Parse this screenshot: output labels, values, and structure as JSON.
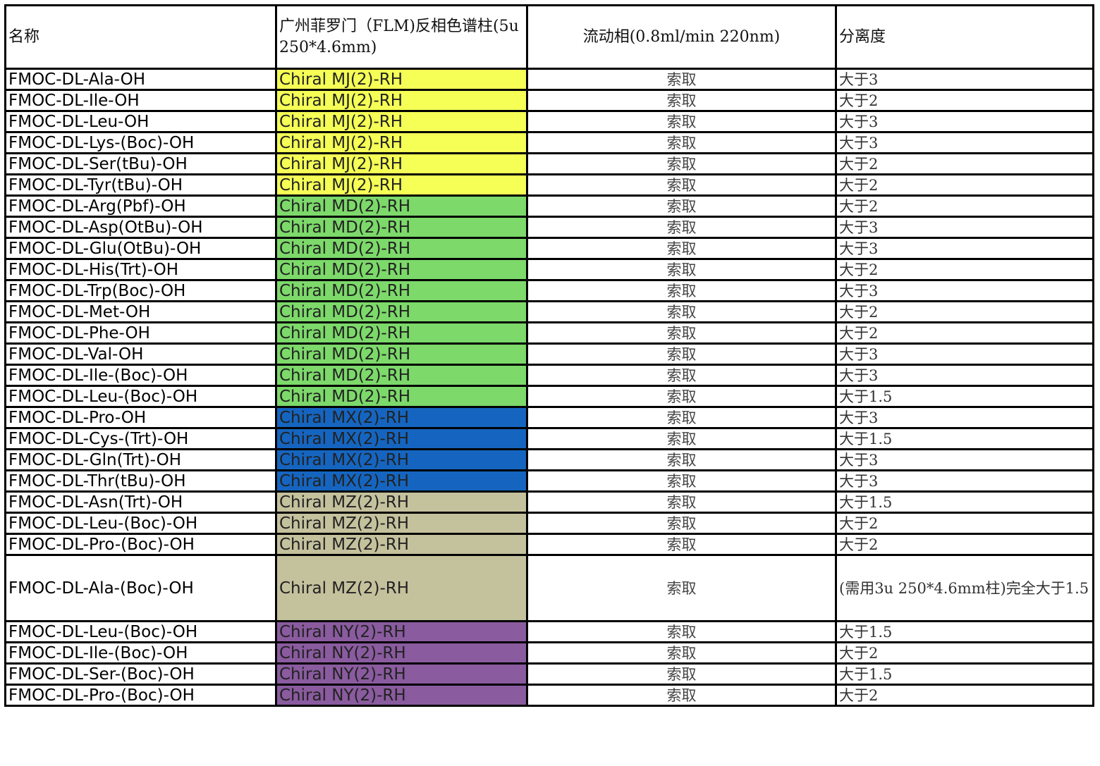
{
  "colors": {
    "MJ": "#f5ff55",
    "MD": "#7cd96a",
    "MX": "#1565c0",
    "MZ": "#c4c19d",
    "NY": "#8a5b9f"
  },
  "headers": [
    "名称",
    "广州菲罗门（FLM)反相色谱柱(5u 250*4.6mm)",
    "流动相(0.8ml/min 220nm)",
    "分离度"
  ],
  "rows": [
    {
      "name": "FMOC-DL-Ala-OH",
      "column": "Chiral MJ(2)-RH",
      "group": "MJ",
      "mobile": "索取",
      "resolution": "大于3"
    },
    {
      "name": "FMOC-DL-Ile-OH",
      "column": "Chiral MJ(2)-RH",
      "group": "MJ",
      "mobile": "索取",
      "resolution": "大于2"
    },
    {
      "name": "FMOC-DL-Leu-OH",
      "column": "Chiral MJ(2)-RH",
      "group": "MJ",
      "mobile": "索取",
      "resolution": "大于3"
    },
    {
      "name": "FMOC-DL-Lys-(Boc)-OH",
      "column": "Chiral MJ(2)-RH",
      "group": "MJ",
      "mobile": "索取",
      "resolution": "大于3"
    },
    {
      "name": "FMOC-DL-Ser(tBu)-OH",
      "column": "Chiral MJ(2)-RH",
      "group": "MJ",
      "mobile": "索取",
      "resolution": "大于2"
    },
    {
      "name": "FMOC-DL-Tyr(tBu)-OH",
      "column": "Chiral MJ(2)-RH",
      "group": "MJ",
      "mobile": "索取",
      "resolution": "大于2"
    },
    {
      "name": "FMOC-DL-Arg(Pbf)-OH",
      "column": "Chiral MD(2)-RH",
      "group": "MD",
      "mobile": "索取",
      "resolution": "大于2"
    },
    {
      "name": "FMOC-DL-Asp(OtBu)-OH",
      "column": "Chiral MD(2)-RH",
      "group": "MD",
      "mobile": "索取",
      "resolution": "大于3"
    },
    {
      "name": "FMOC-DL-Glu(OtBu)-OH",
      "column": "Chiral MD(2)-RH",
      "group": "MD",
      "mobile": "索取",
      "resolution": "大于3"
    },
    {
      "name": "FMOC-DL-His(Trt)-OH",
      "column": "Chiral MD(2)-RH",
      "group": "MD",
      "mobile": "索取",
      "resolution": "大于2"
    },
    {
      "name": "FMOC-DL-Trp(Boc)-OH",
      "column": "Chiral MD(2)-RH",
      "group": "MD",
      "mobile": "索取",
      "resolution": "大于3"
    },
    {
      "name": "FMOC-DL-Met-OH",
      "column": "Chiral MD(2)-RH",
      "group": "MD",
      "mobile": "索取",
      "resolution": "大于2"
    },
    {
      "name": "FMOC-DL-Phe-OH",
      "column": "Chiral MD(2)-RH",
      "group": "MD",
      "mobile": "索取",
      "resolution": "大于2"
    },
    {
      "name": "FMOC-DL-Val-OH",
      "column": "Chiral MD(2)-RH",
      "group": "MD",
      "mobile": "索取",
      "resolution": "大于3"
    },
    {
      "name": "FMOC-DL-Ile-(Boc)-OH",
      "column": "Chiral MD(2)-RH",
      "group": "MD",
      "mobile": "索取",
      "resolution": "大于3"
    },
    {
      "name": "FMOC-DL-Leu-(Boc)-OH",
      "column": "Chiral MD(2)-RH",
      "group": "MD",
      "mobile": "索取",
      "resolution": "大于1.5"
    },
    {
      "name": "FMOC-DL-Pro-OH",
      "column": "Chiral MX(2)-RH",
      "group": "MX",
      "mobile": "索取",
      "resolution": "大于3"
    },
    {
      "name": "FMOC-DL-Cys-(Trt)-OH",
      "column": "Chiral MX(2)-RH",
      "group": "MX",
      "mobile": "索取",
      "resolution": "大于1.5"
    },
    {
      "name": "FMOC-DL-Gln(Trt)-OH",
      "column": "Chiral MX(2)-RH",
      "group": "MX",
      "mobile": "索取",
      "resolution": "大于3"
    },
    {
      "name": "FMOC-DL-Thr(tBu)-OH",
      "column": "Chiral MX(2)-RH",
      "group": "MX",
      "mobile": "索取",
      "resolution": "大于3"
    },
    {
      "name": "FMOC-DL-Asn(Trt)-OH",
      "column": "Chiral MZ(2)-RH",
      "group": "MZ",
      "mobile": "索取",
      "resolution": "大于1.5"
    },
    {
      "name": "FMOC-DL-Leu-(Boc)-OH",
      "column": "Chiral MZ(2)-RH",
      "group": "MZ",
      "mobile": "索取",
      "resolution": "大于2"
    },
    {
      "name": "FMOC-DL-Pro-(Boc)-OH",
      "column": "Chiral MZ(2)-RH",
      "group": "MZ",
      "mobile": "索取",
      "resolution": "大于2"
    },
    {
      "name": "FMOC-DL-Ala-(Boc)-OH",
      "column": "Chiral MZ(2)-RH",
      "group": "MZ",
      "mobile": "索取",
      "resolution": "(需用3u 250*4.6mm柱)完全大于1.5",
      "tall": true
    },
    {
      "name": "FMOC-DL-Leu-(Boc)-OH",
      "column": "Chiral NY(2)-RH",
      "group": "NY",
      "mobile": "索取",
      "resolution": "大于1.5"
    },
    {
      "name": "FMOC-DL-Ile-(Boc)-OH",
      "column": "Chiral NY(2)-RH",
      "group": "NY",
      "mobile": "索取",
      "resolution": "大于2"
    },
    {
      "name": "FMOC-DL-Ser-(Boc)-OH",
      "column": "Chiral NY(2)-RH",
      "group": "NY",
      "mobile": "索取",
      "resolution": "大于1.5"
    },
    {
      "name": "FMOC-DL-Pro-(Boc)-OH",
      "column": "Chiral NY(2)-RH",
      "group": "NY",
      "mobile": "索取",
      "resolution": "大于2"
    }
  ]
}
